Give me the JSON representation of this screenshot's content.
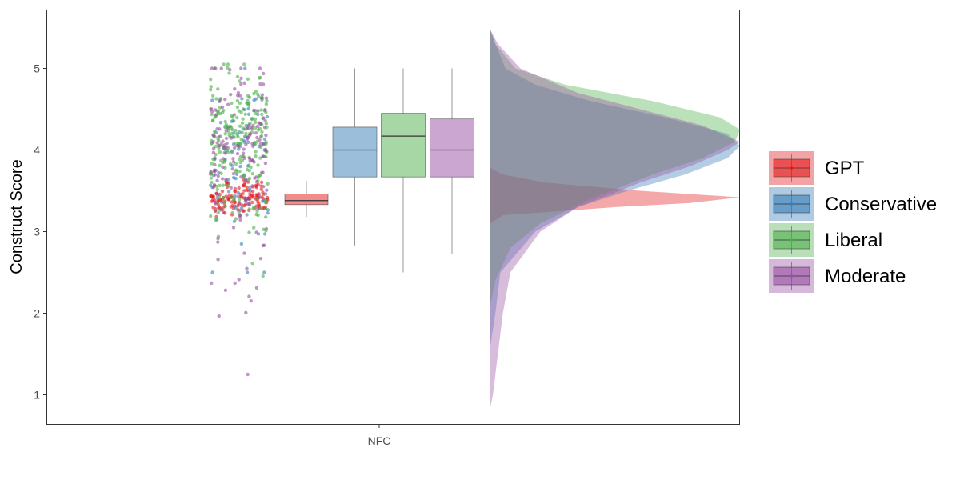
{
  "chart_data": {
    "type": "raincloud",
    "title": "",
    "xlabel": "",
    "ylabel": "Construct Score",
    "categories": [
      "NFC"
    ],
    "ylim": [
      0.62,
      5.55
    ],
    "yticks": [
      1,
      2,
      3,
      4,
      5
    ],
    "grid": false,
    "legend_position": "right",
    "series": [
      {
        "name": "GPT",
        "color": "#E41A1C",
        "box": {
          "min": 3.18,
          "q1": 3.33,
          "median": 3.38,
          "q3": 3.46,
          "max": 3.62
        },
        "points_range": [
          3.15,
          3.8
        ],
        "density": [
          [
            3.1,
            0.0
          ],
          [
            3.2,
            0.05
          ],
          [
            3.3,
            0.5
          ],
          [
            3.35,
            0.8
          ],
          [
            3.42,
            1.0
          ],
          [
            3.5,
            0.6
          ],
          [
            3.6,
            0.22
          ],
          [
            3.7,
            0.05
          ],
          [
            3.78,
            0.0
          ]
        ]
      },
      {
        "name": "Conservative",
        "color": "#377EB8",
        "box": {
          "min": 2.83,
          "q1": 3.67,
          "median": 4.0,
          "q3": 4.28,
          "max": 5.0
        },
        "points_range": [
          2.5,
          5.0
        ],
        "density": [
          [
            1.6,
            0.0
          ],
          [
            2.0,
            0.02
          ],
          [
            2.5,
            0.04
          ],
          [
            3.0,
            0.18
          ],
          [
            3.3,
            0.35
          ],
          [
            3.5,
            0.55
          ],
          [
            3.7,
            0.78
          ],
          [
            3.9,
            0.95
          ],
          [
            4.05,
            1.0
          ],
          [
            4.2,
            0.95
          ],
          [
            4.4,
            0.7
          ],
          [
            4.6,
            0.4
          ],
          [
            4.8,
            0.18
          ],
          [
            5.0,
            0.06
          ],
          [
            5.3,
            0.02
          ],
          [
            5.47,
            0.0
          ]
        ]
      },
      {
        "name": "Liberal",
        "color": "#4DAF4A",
        "box": {
          "min": 2.5,
          "q1": 3.67,
          "median": 4.17,
          "q3": 4.45,
          "max": 5.0
        },
        "points_range": [
          2.1,
          5.05
        ],
        "density": [
          [
            2.1,
            0.0
          ],
          [
            2.4,
            0.02
          ],
          [
            2.8,
            0.08
          ],
          [
            3.1,
            0.2
          ],
          [
            3.4,
            0.4
          ],
          [
            3.7,
            0.65
          ],
          [
            3.9,
            0.85
          ],
          [
            4.1,
            0.98
          ],
          [
            4.25,
            1.0
          ],
          [
            4.4,
            0.92
          ],
          [
            4.6,
            0.65
          ],
          [
            4.8,
            0.3
          ],
          [
            5.0,
            0.1
          ],
          [
            5.3,
            0.02
          ],
          [
            5.47,
            0.0
          ]
        ]
      },
      {
        "name": "Moderate",
        "color": "#984EA3",
        "box": {
          "min": 2.72,
          "q1": 3.67,
          "median": 4.0,
          "q3": 4.38,
          "max": 5.0
        },
        "points_range": [
          1.25,
          5.0
        ],
        "density": [
          [
            0.85,
            0.0
          ],
          [
            1.0,
            0.01
          ],
          [
            1.5,
            0.03
          ],
          [
            2.0,
            0.05
          ],
          [
            2.5,
            0.08
          ],
          [
            3.0,
            0.2
          ],
          [
            3.3,
            0.35
          ],
          [
            3.6,
            0.6
          ],
          [
            3.8,
            0.8
          ],
          [
            4.0,
            0.95
          ],
          [
            4.1,
            1.0
          ],
          [
            4.3,
            0.85
          ],
          [
            4.5,
            0.6
          ],
          [
            4.7,
            0.35
          ],
          [
            5.0,
            0.12
          ],
          [
            5.3,
            0.03
          ],
          [
            5.47,
            0.0
          ]
        ]
      }
    ]
  }
}
